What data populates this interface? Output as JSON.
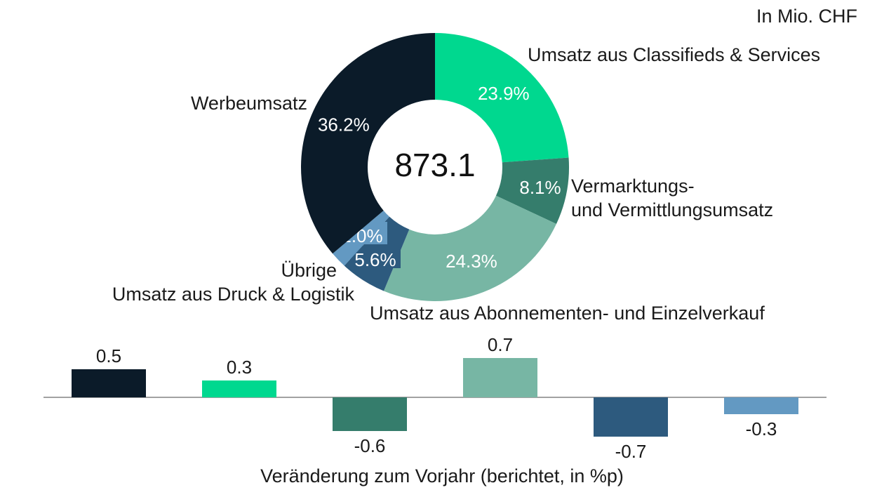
{
  "unit_note": "In Mio. CHF",
  "chart_data": [
    {
      "type": "pie",
      "variant": "donut",
      "center_value": "873.1",
      "unit": "In Mio. CHF",
      "slices": [
        {
          "label": "Umsatz aus Classifieds & Services",
          "value": 23.9,
          "value_label": "23.9%",
          "color": "#00d88f"
        },
        {
          "label": "Vermarktungs- und Vermittlungsumsatz",
          "value": 8.1,
          "value_label": "8.1%",
          "color": "#357d6c"
        },
        {
          "label": "Umsatz aus Abonnementen- und Einzelverkauf",
          "value": 24.3,
          "value_label": "24.3%",
          "color": "#77b6a4"
        },
        {
          "label": "Umsatz aus Druck & Logistik",
          "value": 5.6,
          "value_label": "5.6%",
          "color": "#2d5a7e"
        },
        {
          "label": "Übrige",
          "value": 2.0,
          "value_label": "2.0%",
          "color": "#6399c2"
        },
        {
          "label": "Werbeumsatz",
          "value": 36.2,
          "value_label": "36.2%",
          "color": "#0b1b29"
        }
      ]
    },
    {
      "type": "bar",
      "xlabel": "Veränderung zum Vorjahr (berichtet, in %p)",
      "categories": [
        "Werbeumsatz",
        "Umsatz aus Classifieds & Services",
        "Vermarktungs- und Vermittlungsumsatz",
        "Umsatz aus Abonnementen- und Einzelverkauf",
        "Umsatz aus Druck & Logistik",
        "Übrige"
      ],
      "values": [
        0.5,
        0.3,
        -0.6,
        0.7,
        -0.7,
        -0.3
      ],
      "value_labels": [
        "0.5",
        "0.3",
        "-0.6",
        "0.7",
        "-0.7",
        "-0.3"
      ],
      "colors": [
        "#0b1b29",
        "#00d88f",
        "#357d6c",
        "#77b6a4",
        "#2d5a7e",
        "#6399c2"
      ],
      "grid": false
    }
  ]
}
